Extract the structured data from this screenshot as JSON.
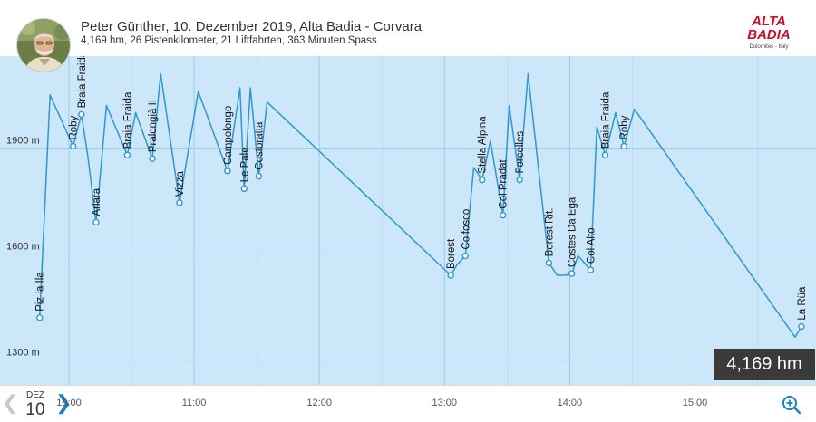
{
  "header": {
    "title": "Peter Günther, 10. Dezember 2019, Alta Badia - Corvara",
    "subtitle": "4,169 hm, 26 Pistenkilometer, 21 Liftfahrten, 363 Minuten Spass",
    "avatar_icon": "user-avatar-photo",
    "logo": {
      "line1": "ALTA",
      "line2": "BADIA",
      "tagline": "Dolomites - Italy",
      "color": "#c8102e"
    }
  },
  "stats_badge": "4,169 hm",
  "date_nav": {
    "month": "DEZ",
    "day": "10",
    "prev_icon": "chevron-left-icon",
    "next_icon": "chevron-right-icon",
    "zoom_icon": "zoom-in-icon"
  },
  "colors": {
    "line": "#2f98cf",
    "background": "#cce6fa",
    "grid": "#9ccde8",
    "accent": "#1a82c4"
  },
  "chart_data": {
    "type": "line",
    "x_unit": "time",
    "y_unit": "m",
    "x_ticks": [
      "10:00",
      "11:00",
      "12:00",
      "13:00",
      "14:00",
      "15:00"
    ],
    "y_ticks": [
      {
        "label": "1300 m",
        "value": 1300
      },
      {
        "label": "1600 m",
        "value": 1600
      },
      {
        "label": "1900 m",
        "value": 1900
      }
    ],
    "ylim": [
      1230,
      2160
    ],
    "xlim": [
      "09:27",
      "15:58"
    ],
    "series": [
      {
        "points": [
          {
            "t": "09:46",
            "e": 1420
          },
          {
            "t": "09:51",
            "e": 2050
          },
          {
            "t": "10:02",
            "e": 1905
          },
          {
            "t": "10:06",
            "e": 1995
          },
          {
            "t": "10:09",
            "e": 1880
          },
          {
            "t": "10:13",
            "e": 1690
          },
          {
            "t": "10:18",
            "e": 2020
          },
          {
            "t": "10:28",
            "e": 1880
          },
          {
            "t": "10:32",
            "e": 2000
          },
          {
            "t": "10:40",
            "e": 1870
          },
          {
            "t": "10:44",
            "e": 2110
          },
          {
            "t": "10:53",
            "e": 1745
          },
          {
            "t": "11:02",
            "e": 2060
          },
          {
            "t": "11:16",
            "e": 1835
          },
          {
            "t": "11:22",
            "e": 2070
          },
          {
            "t": "11:24",
            "e": 1785
          },
          {
            "t": "11:27",
            "e": 2070
          },
          {
            "t": "11:31",
            "e": 1820
          },
          {
            "t": "11:35",
            "e": 2030
          },
          {
            "t": "13:03",
            "e": 1540
          },
          {
            "t": "13:06",
            "e": 1570
          },
          {
            "t": "13:10",
            "e": 1595
          },
          {
            "t": "13:14",
            "e": 1845
          },
          {
            "t": "13:18",
            "e": 1810
          },
          {
            "t": "13:22",
            "e": 1920
          },
          {
            "t": "13:28",
            "e": 1710
          },
          {
            "t": "13:31",
            "e": 2020
          },
          {
            "t": "13:36",
            "e": 1810
          },
          {
            "t": "13:40",
            "e": 2110
          },
          {
            "t": "13:50",
            "e": 1575
          },
          {
            "t": "13:54",
            "e": 1540
          },
          {
            "t": "13:58",
            "e": 1540
          },
          {
            "t": "14:01",
            "e": 1545
          },
          {
            "t": "14:04",
            "e": 1595
          },
          {
            "t": "14:10",
            "e": 1555
          },
          {
            "t": "14:13",
            "e": 1960
          },
          {
            "t": "14:17",
            "e": 1880
          },
          {
            "t": "14:22",
            "e": 2000
          },
          {
            "t": "14:26",
            "e": 1905
          },
          {
            "t": "14:31",
            "e": 2010
          },
          {
            "t": "15:48",
            "e": 1365
          },
          {
            "t": "15:51",
            "e": 1395
          }
        ]
      }
    ],
    "annotations": [
      {
        "label": "Piz la Ila",
        "t": "09:46",
        "e": 1420
      },
      {
        "label": "Roby",
        "t": "10:02",
        "e": 1905
      },
      {
        "label": "Braia Fraida Rit.",
        "t": "10:06",
        "e": 1995
      },
      {
        "label": "Arlara",
        "t": "10:13",
        "e": 1690
      },
      {
        "label": "Braia Fraida",
        "t": "10:28",
        "e": 1880
      },
      {
        "label": "Pralongià II",
        "t": "10:40",
        "e": 1870
      },
      {
        "label": "Vizza",
        "t": "10:53",
        "e": 1745
      },
      {
        "label": "Campolongo",
        "t": "11:16",
        "e": 1835
      },
      {
        "label": "Le Pale",
        "t": "11:24",
        "e": 1785
      },
      {
        "label": "Costoratta",
        "t": "11:31",
        "e": 1820
      },
      {
        "label": "Borest",
        "t": "13:03",
        "e": 1540
      },
      {
        "label": "Colfosco",
        "t": "13:10",
        "e": 1595
      },
      {
        "label": "Stella Alpina",
        "t": "13:18",
        "e": 1810
      },
      {
        "label": "Col Pradat",
        "t": "13:28",
        "e": 1710
      },
      {
        "label": "Forcelles",
        "t": "13:36",
        "e": 1810
      },
      {
        "label": "Borest Rit.",
        "t": "13:50",
        "e": 1575
      },
      {
        "label": "Costes Da Ega",
        "t": "14:01",
        "e": 1545
      },
      {
        "label": "Col Alto",
        "t": "14:10",
        "e": 1555
      },
      {
        "label": "Braia Fraida",
        "t": "14:17",
        "e": 1880
      },
      {
        "label": "Roby",
        "t": "14:26",
        "e": 1905
      },
      {
        "label": "La Rüa",
        "t": "15:51",
        "e": 1395
      }
    ]
  }
}
